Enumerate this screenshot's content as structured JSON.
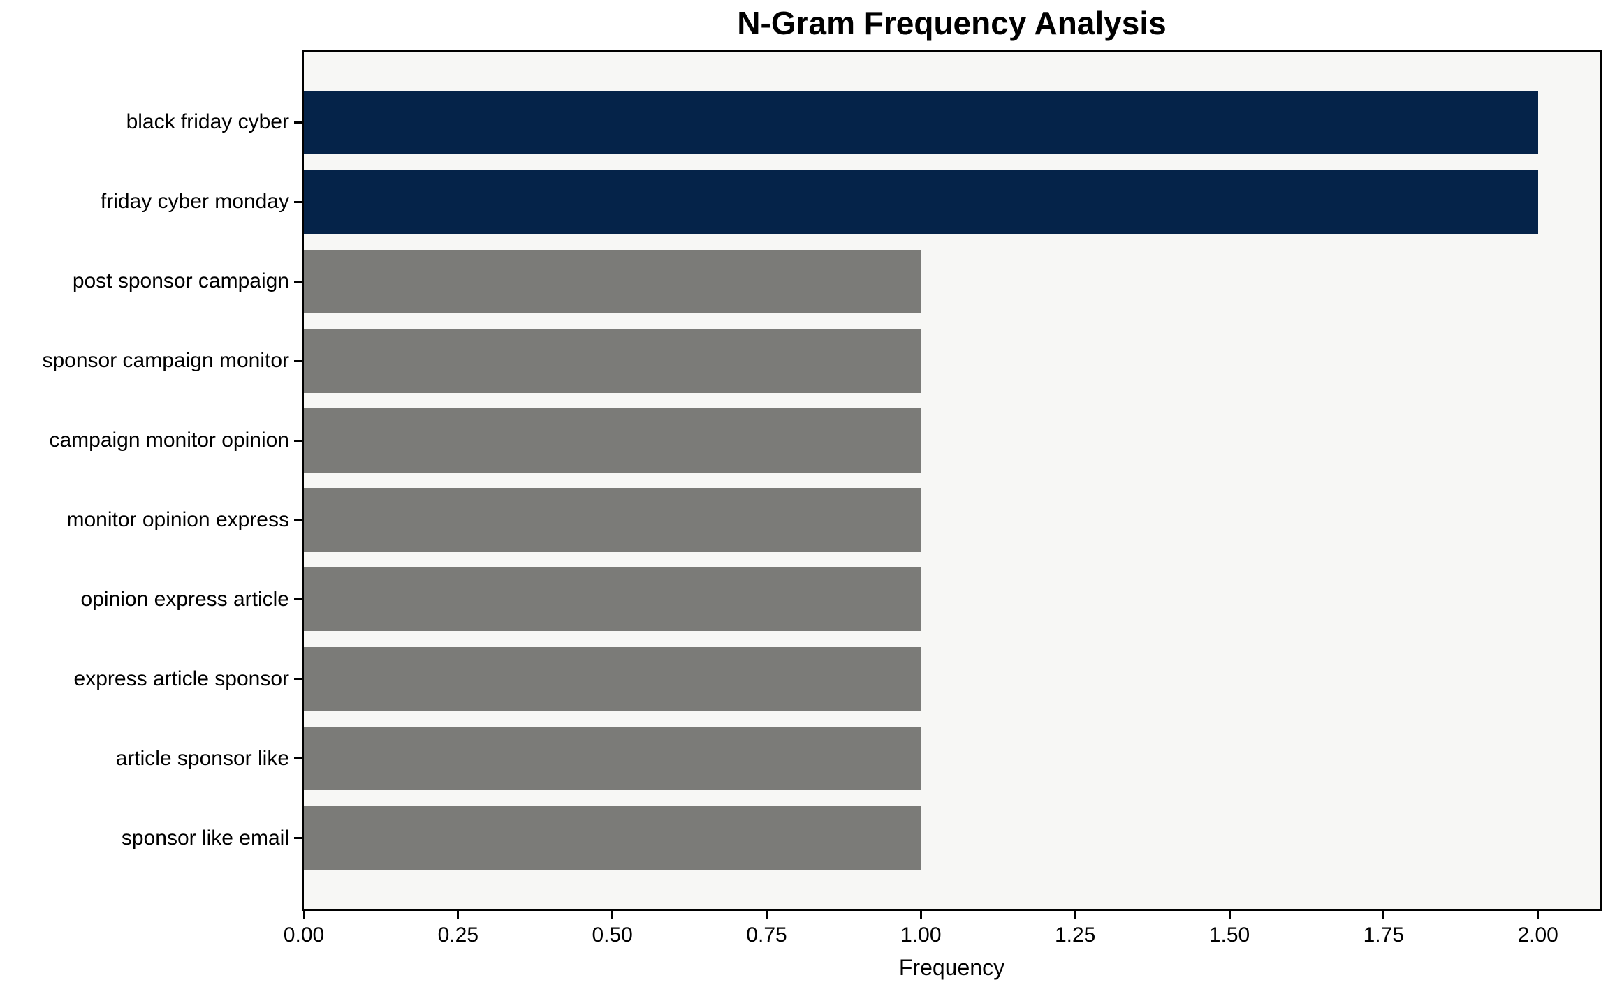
{
  "chart_data": {
    "type": "bar",
    "orientation": "horizontal",
    "title": "N-Gram Frequency Analysis",
    "xlabel": "Frequency",
    "ylabel": "",
    "categories": [
      "black friday cyber",
      "friday cyber monday",
      "post sponsor campaign",
      "sponsor campaign monitor",
      "campaign monitor opinion",
      "monitor opinion express",
      "opinion express article",
      "express article sponsor",
      "article sponsor like",
      "sponsor like email"
    ],
    "values": [
      2,
      2,
      1,
      1,
      1,
      1,
      1,
      1,
      1,
      1
    ],
    "bar_colors": [
      "#052349",
      "#052349",
      "#7b7b78",
      "#7b7b78",
      "#7b7b78",
      "#7b7b78",
      "#7b7b78",
      "#7b7b78",
      "#7b7b78",
      "#7b7b78"
    ],
    "xlim": [
      0,
      2.1
    ],
    "xticks": [
      0,
      0.25,
      0.5,
      0.75,
      1,
      1.25,
      1.5,
      1.75,
      2
    ],
    "xtick_labels": [
      "0.00",
      "0.25",
      "0.50",
      "0.75",
      "1.00",
      "1.25",
      "1.50",
      "1.75",
      "2.00"
    ],
    "grid": false,
    "legend": "none",
    "colors": {
      "highlight": "#052349",
      "default": "#7b7b78",
      "plot_background": "#f7f7f5",
      "figure_background": "#ffffff",
      "spine": "#000000",
      "text": "#000000"
    }
  }
}
